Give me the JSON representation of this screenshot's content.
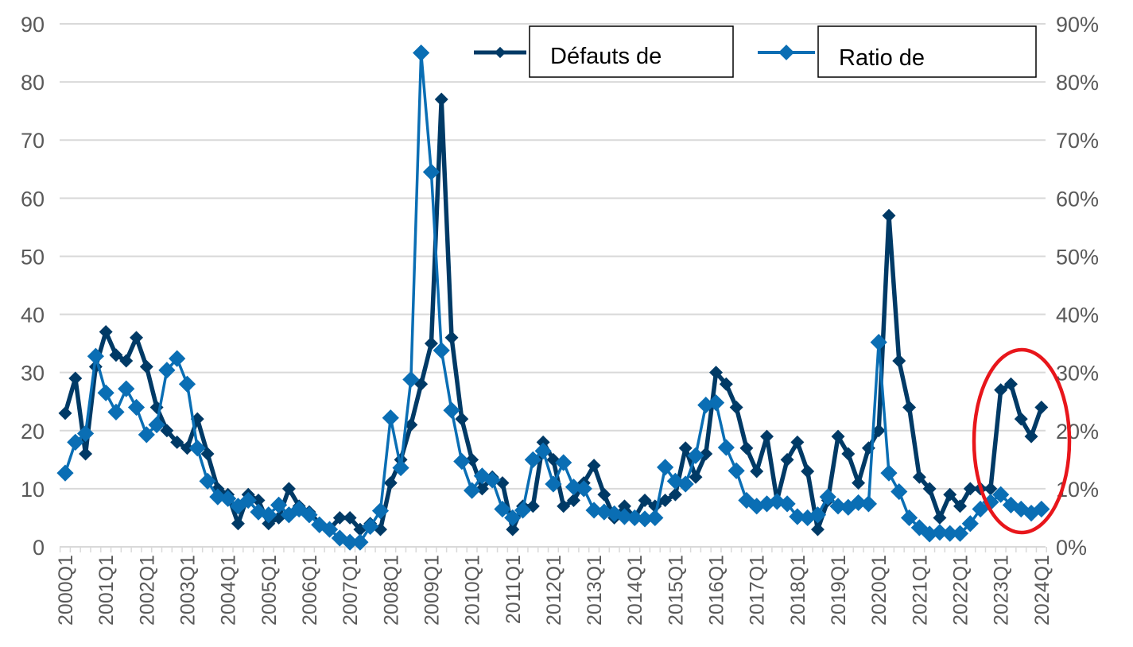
{
  "chart_data": {
    "type": "line",
    "title": "",
    "grid": true,
    "legend_placement": "top-center",
    "y_left": {
      "min": 0,
      "max": 90,
      "step": 10,
      "tick_labels": [
        "0",
        "10",
        "20",
        "30",
        "40",
        "50",
        "60",
        "70",
        "80",
        "90"
      ]
    },
    "y_right": {
      "min": 0,
      "max": 90,
      "step": 10,
      "tick_labels": [
        "0%",
        "10%",
        "20%",
        "30%",
        "40%",
        "50%",
        "60%",
        "70%",
        "80%",
        "90%"
      ]
    },
    "x_tick_labels": [
      "2000Q1",
      "2001Q1",
      "2002Q1",
      "2003Q1",
      "2004Q1",
      "2005Q1",
      "2006Q1",
      "2007Q1",
      "2008Q1",
      "2009Q1",
      "2010Q1",
      "2011Q1",
      "2012Q1",
      "2013Q1",
      "2014Q1",
      "2015Q1",
      "2016Q1",
      "2017Q1",
      "2018Q1",
      "2019Q1",
      "2020Q1",
      "2021Q1",
      "2022Q1",
      "2023Q1",
      "2024Q1"
    ],
    "x_range": [
      "2000Q1",
      "2024Q1"
    ],
    "x_frequency": "quarterly",
    "series": [
      {
        "name": "Défauts de",
        "axis": "left",
        "color": "#003A66",
        "values": [
          23,
          29,
          16,
          31,
          37,
          33,
          32,
          36,
          31,
          24,
          20,
          18,
          17,
          22,
          16,
          10,
          9,
          4,
          9,
          8,
          4,
          5,
          10,
          7,
          6,
          4,
          3,
          5,
          5,
          3,
          4,
          3,
          11,
          15,
          21,
          28,
          35,
          77,
          36,
          22,
          15,
          10,
          12,
          11,
          3,
          7,
          7,
          18,
          15,
          7,
          8,
          11,
          14,
          9,
          5,
          7,
          5,
          8,
          7,
          8,
          9,
          17,
          12,
          16,
          30,
          28,
          24,
          17,
          13,
          19,
          8,
          15,
          18,
          13,
          3,
          8,
          19,
          16,
          11,
          17,
          20,
          57,
          32,
          24,
          12,
          10,
          5,
          9,
          7,
          10,
          10,
          10,
          27,
          28,
          22,
          19,
          24
        ]
      },
      {
        "name": "Ratio de",
        "axis": "right",
        "color": "#0A6EB4",
        "unit": "%",
        "values": [
          12.7,
          18,
          19.5,
          32.8,
          26.5,
          23.2,
          27.2,
          24,
          19.3,
          21,
          30.4,
          32.4,
          28,
          17,
          11.3,
          8.6,
          8.3,
          7,
          8,
          6,
          5.5,
          7.2,
          5.5,
          6.5,
          5.5,
          3.8,
          3,
          1.5,
          0.8,
          0.8,
          3.5,
          6.2,
          22.2,
          13.6,
          28.8,
          85,
          64.5,
          33.8,
          23.5,
          14.7,
          9.7,
          12.2,
          11.5,
          6.5,
          5,
          6.3,
          15,
          16.5,
          10.8,
          14.5,
          10.3,
          10,
          6.3,
          6,
          5.7,
          5.2,
          5,
          4.8,
          5,
          13.7,
          11.3,
          10.8,
          15.7,
          24.4,
          24.8,
          17.1,
          13.1,
          8,
          7,
          7.4,
          7.8,
          7.4,
          5.2,
          5,
          5.5,
          8.6,
          7,
          6.8,
          7.6,
          7.4,
          35.2,
          12.7,
          9.5,
          5,
          3.3,
          2.2,
          2.5,
          2.3,
          2.3,
          4,
          6.5,
          7.7,
          9,
          7.2,
          6.5,
          5.8,
          6.5
        ]
      }
    ],
    "annotations": [
      {
        "type": "ellipse",
        "color": "#E8161B",
        "range": [
          "2023Q1",
          "2024Q1"
        ]
      }
    ]
  }
}
